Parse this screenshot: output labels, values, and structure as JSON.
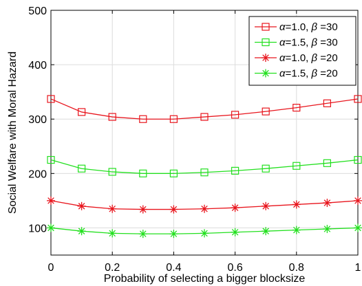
{
  "chart_data": {
    "type": "line",
    "title": "",
    "xlabel": "Probability of selecting a bigger blocksize",
    "ylabel": "Social Welfare with Moral Hazard",
    "xlim": [
      0,
      1
    ],
    "ylim": [
      50,
      500
    ],
    "xticks": [
      0,
      0.2,
      0.4,
      0.6,
      0.8,
      1
    ],
    "yticks": [
      100,
      200,
      300,
      400,
      500
    ],
    "xtick_labels": [
      "0",
      "0.2",
      "0.4",
      "0.6",
      "0.8",
      "1"
    ],
    "ytick_labels": [
      "100",
      "200",
      "300",
      "400",
      "500"
    ],
    "grid": true,
    "legend_position": "top-right",
    "x": [
      0,
      0.1,
      0.2,
      0.3,
      0.4,
      0.5,
      0.6,
      0.7,
      0.8,
      0.9,
      1.0
    ],
    "series": [
      {
        "name": "α=1.0, β =30",
        "name_parts": {
          "alpha_sym": "α",
          "alpha_val": "=1.0, ",
          "beta_sym": "β",
          "beta_val": " =30"
        },
        "color": "#e8141c",
        "marker": "square",
        "values": [
          337,
          313,
          304,
          300,
          300,
          304,
          308,
          314,
          321,
          329,
          337
        ]
      },
      {
        "name": "α=1.5, β =30",
        "name_parts": {
          "alpha_sym": "α",
          "alpha_val": "=1.5, ",
          "beta_sym": "β",
          "beta_val": " =30"
        },
        "color": "#22e01e",
        "marker": "square",
        "values": [
          225,
          209,
          203,
          200,
          200,
          202,
          205,
          209,
          214,
          219,
          225
        ]
      },
      {
        "name": "α=1.0, β =20",
        "name_parts": {
          "alpha_sym": "α",
          "alpha_val": "=1.0, ",
          "beta_sym": "β",
          "beta_val": " =20"
        },
        "color": "#e8141c",
        "marker": "star",
        "values": [
          150,
          140,
          135,
          134,
          134,
          135,
          137,
          140,
          143,
          146,
          150
        ]
      },
      {
        "name": "α=1.5, β =20",
        "name_parts": {
          "alpha_sym": "α",
          "alpha_val": "=1.5, ",
          "beta_sym": "β",
          "beta_val": " =20"
        },
        "color": "#22e01e",
        "marker": "star",
        "values": [
          100,
          94,
          90,
          89,
          89,
          90,
          92,
          94,
          96,
          98,
          100
        ]
      }
    ]
  }
}
